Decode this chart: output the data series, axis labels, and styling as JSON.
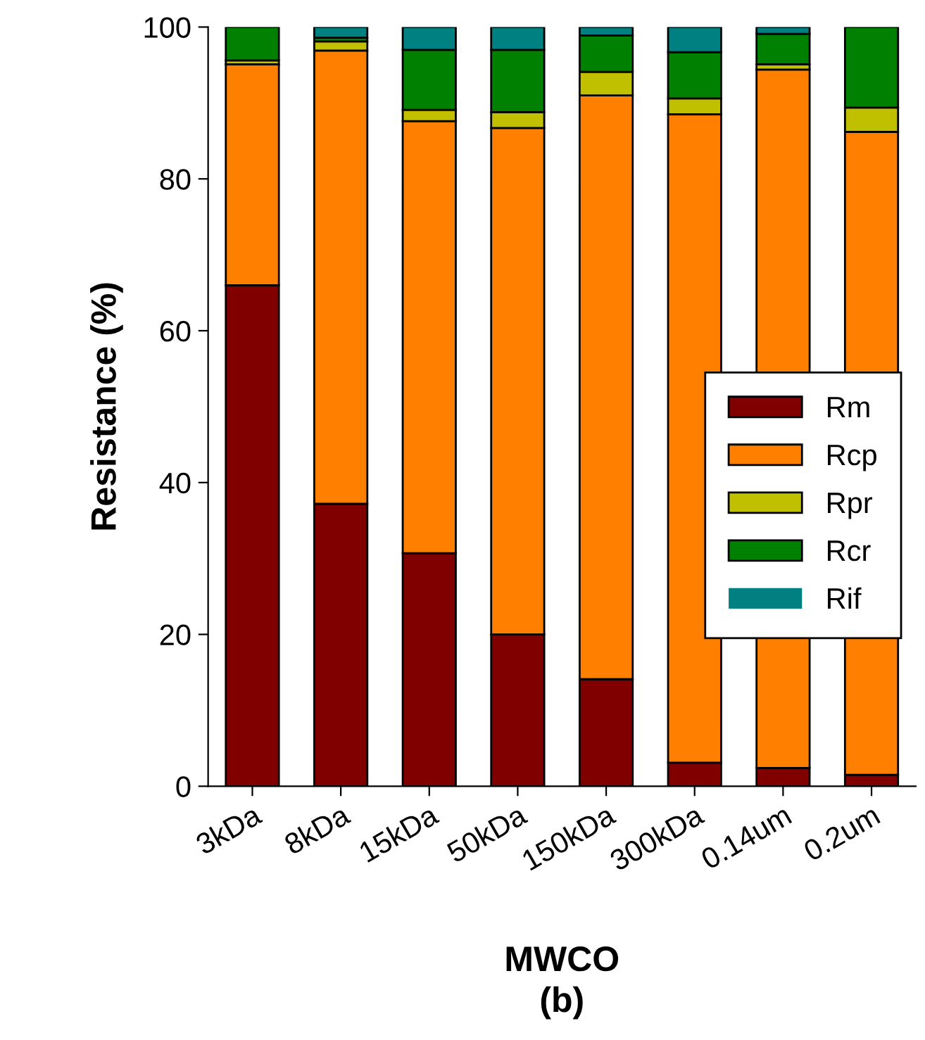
{
  "chart_data": {
    "type": "bar",
    "stacked": true,
    "xlabel": "MWCO",
    "ylabel": "Resistance (%)",
    "annotations": [
      "(b)"
    ],
    "categories": [
      "3kDa",
      "8kDa",
      "15kDa",
      "50kDa",
      "150kDa",
      "300kDa",
      "0.14um",
      "0.2um"
    ],
    "series": [
      {
        "name": "Rm",
        "color": "#800000",
        "values": [
          66,
          37.2,
          30.7,
          20,
          14.1,
          3.1,
          2.4,
          1.5
        ]
      },
      {
        "name": "Rcp",
        "color": "#ff8000",
        "values": [
          29.1,
          59.7,
          56.9,
          66.7,
          76.9,
          85.4,
          92.0,
          84.7
        ]
      },
      {
        "name": "Rpr",
        "color": "#c0c000",
        "values": [
          0.5,
          1.2,
          1.5,
          2.1,
          3.1,
          2.1,
          0.7,
          3.2
        ]
      },
      {
        "name": "Rcr",
        "color": "#008000",
        "values": [
          4.4,
          0.5,
          7.9,
          8.2,
          4.8,
          6.1,
          4.0,
          10.6
        ]
      },
      {
        "name": "Rif",
        "color": "#008080",
        "values": [
          0,
          1.4,
          3.0,
          3.0,
          1.1,
          3.3,
          0.9,
          0
        ]
      }
    ],
    "ylim": [
      0,
      100
    ],
    "yticks": [
      0,
      20,
      40,
      60,
      80,
      100
    ],
    "grid": false,
    "legend": "center right"
  }
}
